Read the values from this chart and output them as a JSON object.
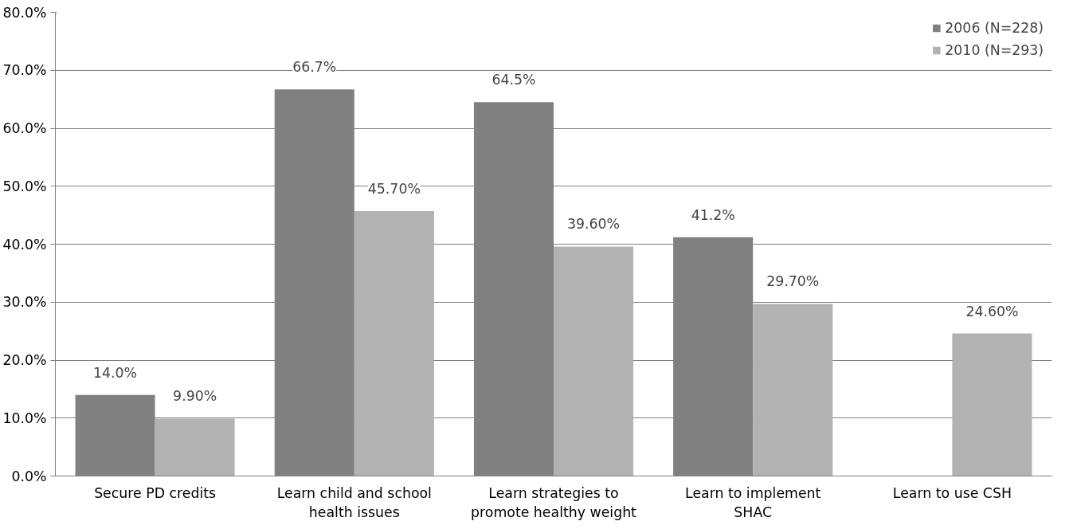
{
  "chart_data": {
    "type": "bar",
    "categories": [
      "Secure PD credits",
      "Learn child and school health issues",
      "Learn strategies to promote healthy weight",
      "Learn to implement SHAC",
      "Learn to use CSH"
    ],
    "series": [
      {
        "name": "2006 (N=228)",
        "color": "#808080",
        "values": [
          14.0,
          66.7,
          64.5,
          41.2,
          null
        ],
        "value_labels": [
          "14.0%",
          "66.7%",
          "64.5%",
          "41.2%",
          null
        ]
      },
      {
        "name": "2010 (N=293)",
        "color": "#b2b2b2",
        "values": [
          9.9,
          45.7,
          39.6,
          29.7,
          24.6
        ],
        "value_labels": [
          "9.90%",
          "45.70%",
          "39.60%",
          "29.70%",
          "24.60%"
        ]
      }
    ],
    "ylim": [
      0,
      80
    ],
    "yticks": [
      {
        "value": 0,
        "label": "0.0%"
      },
      {
        "value": 10,
        "label": "10.0%"
      },
      {
        "value": 20,
        "label": "20.0%"
      },
      {
        "value": 30,
        "label": "30.0%"
      },
      {
        "value": 40,
        "label": "40.0%"
      },
      {
        "value": 50,
        "label": "50.0%"
      },
      {
        "value": 60,
        "label": "60.0%"
      },
      {
        "value": 70,
        "label": "70.0%"
      },
      {
        "value": 80,
        "label": "80.0%"
      }
    ],
    "grid": "y",
    "legend": "top right"
  }
}
